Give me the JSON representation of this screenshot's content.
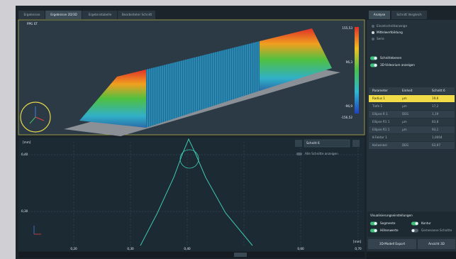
{
  "tabs": [
    "Ergebnisse",
    "Ergebnisse 2D/3D",
    "Ergebnistabelle",
    "Bearbeiteter Schnitt"
  ],
  "view3d": {
    "label": "PPG ST",
    "colorbar_labels": [
      "155,53",
      "96,3",
      "-96,9",
      "-156,52"
    ]
  },
  "profile": {
    "y_unit": "[mm]",
    "y_labels": [
      "0,40",
      "0,30"
    ],
    "x_labels": [
      "0,20",
      "0,30",
      "0,40",
      "0,60",
      "0,70"
    ],
    "x_unit": "[mm]",
    "section": "Schnitt 6",
    "all_sections": "Alle Schnitte anzeigen"
  },
  "side": {
    "tabs": [
      "Analyse",
      "Schnitt Vergleich"
    ],
    "options": [
      "Einzelschnittanzeige",
      "Mittelwertbildung",
      "Serie"
    ],
    "toggles": [
      "Schnittebenen",
      "3D-Videorium anzeigen"
    ],
    "table": {
      "header": [
        "Parameter",
        "Einheit",
        "Schnitt 6"
      ],
      "rows": [
        [
          "Radius 1",
          "µm",
          "19,6"
        ],
        [
          "Tiefe 1",
          "µm",
          "17,2"
        ],
        [
          "Ellipse R 1",
          "DEG",
          "1,19"
        ],
        [
          "Ellipse R1 1",
          "µm",
          "83,8"
        ],
        [
          "Ellipse R1 1",
          "µm",
          "93,1"
        ],
        [
          "K-Faktor 1",
          "",
          "1,0004"
        ],
        [
          "Keilwinkel",
          "DEG",
          "63,97"
        ]
      ]
    },
    "visual": {
      "title": "Visualisierungseinstellungen",
      "toggles": [
        "Segmente",
        "Kontur",
        "Höhenwerte",
        "Gemessene Schnitte"
      ]
    },
    "buttons": [
      "3D-Modell Export",
      "Ansicht 3D"
    ]
  }
}
